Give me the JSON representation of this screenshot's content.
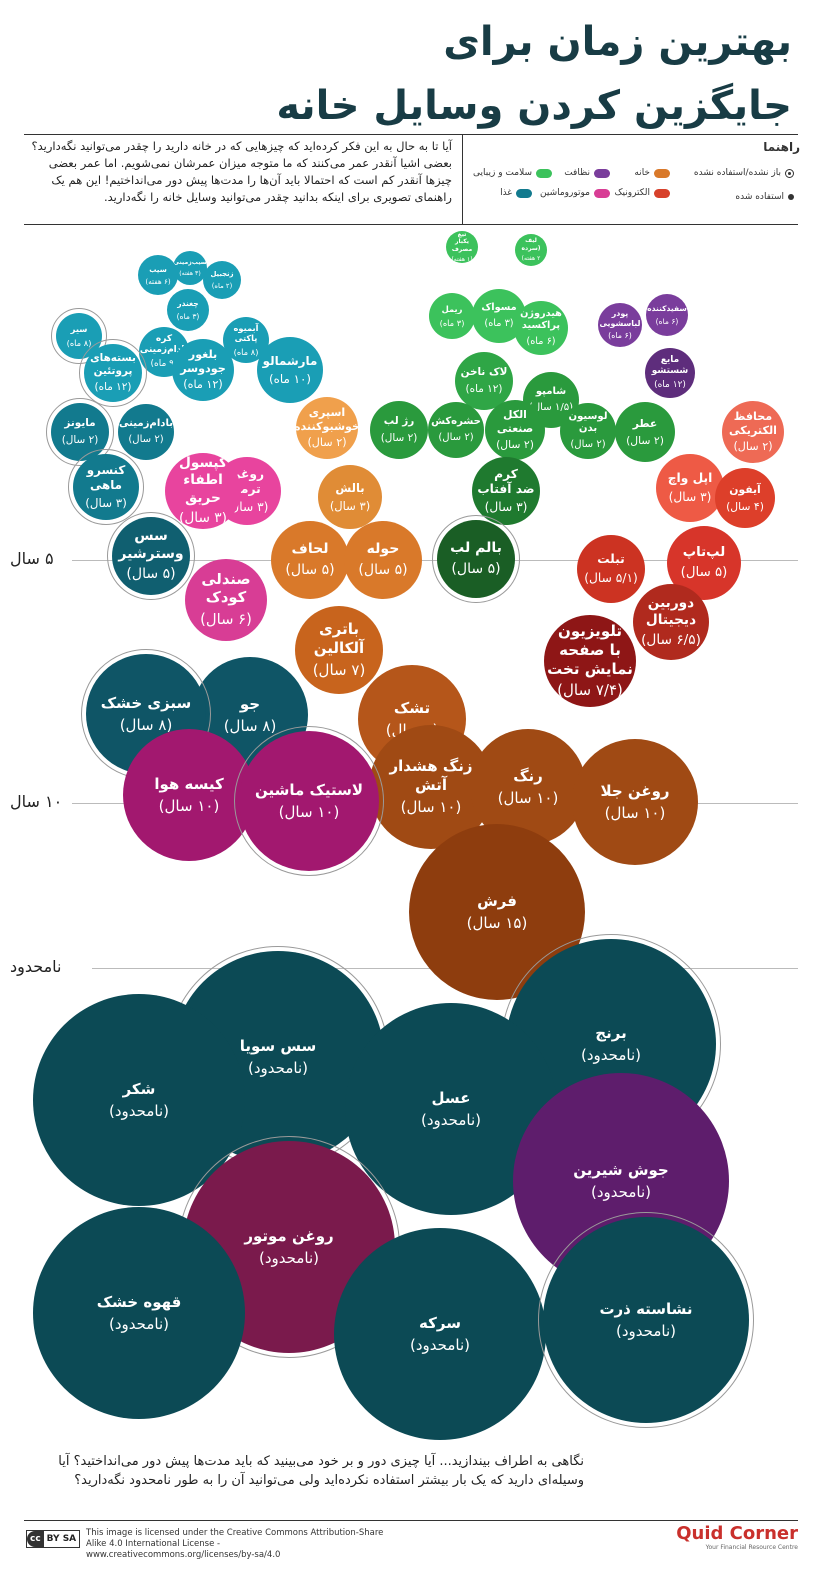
{
  "title": {
    "line1": "بهترین زمان برای",
    "line2": "جایگزین کردن وسایل خانه"
  },
  "intro": {
    "p1": "آیا تا به حال به این فکر کرده‌اید که چیزهایی که در خانه دارید را چقدر می‌توانید نگه‌دارید؟",
    "p2": "بعضی اشیا آنقدر عمر می‌کنند که ما متوجه میزان عمرشان نمی‌شویم. اما عمر بعضی چیزها آنقدر کم است که احتمالا باید آن‌ها را مدت‌ها پیش دور می‌انداختیم! این هم یک راهنمای تصویری برای اینکه بدانید چقدر می‌توانید وسایل خانه را نگه‌دارید."
  },
  "legend": {
    "title": "راهنما",
    "items": [
      {
        "label": "باز نشده/استفاده نشده",
        "kind": "ring"
      },
      {
        "label": "استفاده شده",
        "kind": "dot"
      },
      {
        "label": "خانه",
        "color": "#d9792a"
      },
      {
        "label": "نظافت",
        "color": "#7a3d9c"
      },
      {
        "label": "سلامت و زیبایی",
        "color": "#3cc25c"
      },
      {
        "label": "الکترونیک",
        "color": "#d7412b"
      },
      {
        "label": "موتوروماشین",
        "color": "#d83d95"
      },
      {
        "label": "غذا",
        "color": "#127a8e"
      }
    ]
  },
  "levels": [
    {
      "label": "۵ سال"
    },
    {
      "label": "۱۰ سال"
    },
    {
      "label": "نامحدود"
    }
  ],
  "chart_data": {
    "type": "bubble",
    "title": "بهترین زمان برای جایگزین کردن وسایل خانه",
    "items": [
      {
        "name": "تیغ\nیکبار مصرف",
        "duration": "(۱ هفته)",
        "category": "سلامت و زیبایی",
        "color": "#3cc25c",
        "unopened": false
      },
      {
        "name": "لیف\n(سرده",
        "duration": "۲ هفته)",
        "category": "سلامت و زیبایی",
        "color": "#3cc25c",
        "unopened": false
      },
      {
        "name": "سیب‌زمینی",
        "duration": "(۳ هفته)",
        "category": "غذا",
        "color": "#1a9eb5",
        "unopened": false
      },
      {
        "name": "سیب",
        "duration": "(۶ هفته)",
        "category": "غذا",
        "color": "#1a9eb5",
        "unopened": false
      },
      {
        "name": "زنجبیل",
        "duration": "(۲ ماه)",
        "category": "غذا",
        "color": "#1a9eb5",
        "unopened": false
      },
      {
        "name": "چغندر",
        "duration": "(۳ ماه)",
        "category": "غذا",
        "color": "#1a9eb5",
        "unopened": false
      },
      {
        "name": "سیر",
        "duration": "(۸ ماه)",
        "category": "غذا",
        "color": "#1a9eb5",
        "unopened": true
      },
      {
        "name": "کره\nبادام‌زمینی",
        "duration": "(۹ ماه)",
        "category": "غذا",
        "color": "#1a9eb5",
        "unopened": false
      },
      {
        "name": "آبمیوه\nپاکتی",
        "duration": "(۸ ماه)",
        "category": "غذا",
        "color": "#1a9eb5",
        "unopened": false
      },
      {
        "name": "بسته‌های\nپروتئین",
        "duration": "(۱۲ ماه)",
        "category": "غذا",
        "color": "#1a9eb5",
        "unopened": true
      },
      {
        "name": "بلغور\nجودوسر",
        "duration": "(۱۲ ماه)",
        "category": "غذا",
        "color": "#1a9eb5",
        "unopened": false
      },
      {
        "name": "مارشمالو",
        "duration": "(۱۰ ماه)",
        "category": "غذا",
        "color": "#1a9eb5",
        "unopened": false
      },
      {
        "name": "مایونز",
        "duration": "(۲ سال)",
        "category": "غذا",
        "color": "#127a8e",
        "unopened": true
      },
      {
        "name": "بادام‌زمینی",
        "duration": "(۲ سال)",
        "category": "غذا",
        "color": "#127a8e",
        "unopened": false
      },
      {
        "name": "کنسرو\nماهی",
        "duration": "(۳ سال)",
        "category": "غذا",
        "color": "#127a8e",
        "unopened": true
      },
      {
        "name": "سس\nوسترشیر",
        "duration": "(۵ سال)",
        "category": "غذا",
        "color": "#105f70",
        "unopened": true
      },
      {
        "name": "ریمل",
        "duration": "(۳ ماه)",
        "category": "سلامت و زیبایی",
        "color": "#3cc25c",
        "unopened": false
      },
      {
        "name": "مسواک",
        "duration": "(۳ ماه)",
        "category": "سلامت و زیبایی",
        "color": "#3cc25c",
        "unopened": false
      },
      {
        "name": "هیدروژن\nپراکسید",
        "duration": "(۶ ماه)",
        "category": "سلامت و زیبایی",
        "color": "#3cc25c",
        "unopened": false
      },
      {
        "name": "لاک ناخن",
        "duration": "(۱۲ ماه)",
        "category": "سلامت و زیبایی",
        "color": "#2fa646",
        "unopened": false
      },
      {
        "name": "شامپو",
        "duration": "(۱/۵ سال)",
        "category": "سلامت و زیبایی",
        "color": "#2a9a3d",
        "unopened": false
      },
      {
        "name": "رژ لب",
        "duration": "(۲ سال)",
        "category": "سلامت و زیبایی",
        "color": "#2a9a3d",
        "unopened": false
      },
      {
        "name": "حشره‌کش",
        "duration": "(۲ سال)",
        "category": "سلامت و زیبایی",
        "color": "#2a9a3d",
        "unopened": false
      },
      {
        "name": "الکل\nصنعتی",
        "duration": "(۲ سال)",
        "category": "سلامت و زیبایی",
        "color": "#2a9a3d",
        "unopened": false
      },
      {
        "name": "لوسیون\nبدن",
        "duration": "(۲ سال)",
        "category": "سلامت و زیبایی",
        "color": "#2a9a3d",
        "unopened": false
      },
      {
        "name": "عطر",
        "duration": "(۲ سال)",
        "category": "سلامت و زیبایی",
        "color": "#2a9a3d",
        "unopened": false
      },
      {
        "name": "کرم\nضد آفتاب",
        "duration": "(۳ سال)",
        "category": "سلامت و زیبایی",
        "color": "#1f7a2f",
        "unopened": false
      },
      {
        "name": "بالم لب",
        "duration": "(۵ سال)",
        "category": "سلامت و زیبایی",
        "color": "#1a5e25",
        "unopened": true
      },
      {
        "name": "پودر\nلباسشویی",
        "duration": "(۶ ماه)",
        "category": "نظافت",
        "color": "#7a3d9c",
        "unopened": false
      },
      {
        "name": "سفیدکننده",
        "duration": "(۶ ماه)",
        "category": "نظافت",
        "color": "#7a3d9c",
        "unopened": false
      },
      {
        "name": "مایع\nشستشو",
        "duration": "(۱۲ ماه)",
        "category": "نظافت",
        "color": "#5e2d7c",
        "unopened": false
      },
      {
        "name": "محافظ\nالکتریکی",
        "duration": "(۲ سال)",
        "category": "الکترونیک",
        "color": "#ee6a55",
        "unopened": false
      },
      {
        "name": "اپل واچ",
        "duration": "(۳ سال)",
        "category": "الکترونیک",
        "color": "#ee5a45",
        "unopened": false
      },
      {
        "name": "آیفون",
        "duration": "(۴ سال)",
        "category": "الکترونیک",
        "color": "#dd3f2a",
        "unopened": false
      },
      {
        "name": "لپ‌تاپ",
        "duration": "(۵ سال)",
        "category": "الکترونیک",
        "color": "#d7352a",
        "unopened": false
      },
      {
        "name": "تبلت",
        "duration": "(۵/۱ سال)",
        "category": "الکترونیک",
        "color": "#cc3322",
        "unopened": false
      },
      {
        "name": "دوربین\nدیجیتال",
        "duration": "(۶/۵ سال)",
        "category": "الکترونیک",
        "color": "#b02a1e",
        "unopened": false
      },
      {
        "name": "تلویزیون\nبا صفحه\nنمایش تخت",
        "duration": "(۷/۴ سال)",
        "category": "الکترونیک",
        "color": "#8e1616",
        "unopened": false
      },
      {
        "name": "اسپری\nخوشبوکننده",
        "duration": "(۲ سال)",
        "category": "خانه",
        "color": "#f0a04c",
        "unopened": false
      },
      {
        "name": "بالش",
        "duration": "(۳ سال)",
        "category": "خانه",
        "color": "#e08c36",
        "unopened": false
      },
      {
        "name": "لحاف",
        "duration": "(۵ سال)",
        "category": "خانه",
        "color": "#d9792a",
        "unopened": false
      },
      {
        "name": "حوله",
        "duration": "(۵ سال)",
        "category": "خانه",
        "color": "#d9792a",
        "unopened": false
      },
      {
        "name": "باتری آلکالین",
        "duration": "(۷ سال)",
        "category": "خانه",
        "color": "#c8641d",
        "unopened": false
      },
      {
        "name": "تشک",
        "duration": "(۸ سال)",
        "category": "خانه",
        "color": "#b5561a",
        "unopened": false
      },
      {
        "name": "زنگ هشدار\nآتش",
        "duration": "(۱۰ سال)",
        "category": "خانه",
        "color": "#a04a14",
        "unopened": false
      },
      {
        "name": "رنگ",
        "duration": "(۱۰ سال)",
        "category": "خانه",
        "color": "#a04a14",
        "unopened": false
      },
      {
        "name": "روغن جلا",
        "duration": "(۱۰ سال)",
        "category": "خانه",
        "color": "#a04a14",
        "unopened": false
      },
      {
        "name": "فرش",
        "duration": "(۱۵ سال)",
        "category": "خانه",
        "color": "#8e3d0e",
        "unopened": false
      },
      {
        "name": "روغن\nترمز",
        "duration": "(۳ سال)",
        "category": "موتوروماشین",
        "color": "#e8449e",
        "unopened": false
      },
      {
        "name": "کپسول\nاطفاء حریق",
        "duration": "(۳ سال)",
        "category": "موتوروماشین",
        "color": "#e8449e",
        "unopened": false
      },
      {
        "name": "صندلی\nکودک",
        "duration": "(۶ سال)",
        "category": "موتوروماشین",
        "color": "#d83d95",
        "unopened": false
      },
      {
        "name": "جو",
        "duration": "(۸ سال)",
        "category": "غذا",
        "color": "#0f5566",
        "unopened": false
      },
      {
        "name": "سبزی خشک",
        "duration": "(۸ سال)",
        "category": "غذا",
        "color": "#0f5566",
        "unopened": true
      },
      {
        "name": "کیسه هوا",
        "duration": "(۱۰ سال)",
        "category": "موتوروماشین",
        "color": "#a2186f",
        "unopened": false
      },
      {
        "name": "لاستیک ماشین",
        "duration": "(۱۰ سال)",
        "category": "موتوروماشین",
        "color": "#a2186f",
        "unopened": true
      },
      {
        "name": "برنج",
        "duration": "(نامحدود)",
        "category": "غذا",
        "color": "#0c4a55",
        "unopened": true
      },
      {
        "name": "سس سویا",
        "duration": "(نامحدود)",
        "category": "غذا",
        "color": "#0c4a55",
        "unopened": true
      },
      {
        "name": "شکر",
        "duration": "(نامحدود)",
        "category": "غذا",
        "color": "#0c4a55",
        "unopened": false
      },
      {
        "name": "عسل",
        "duration": "(نامحدود)",
        "category": "غذا",
        "color": "#0c4a55",
        "unopened": false
      },
      {
        "name": "جوش شیرین",
        "duration": "(نامحدود)",
        "category": "نظافت",
        "color": "#5e1d6c",
        "unopened": false
      },
      {
        "name": "روغن موتور",
        "duration": "(نامحدود)",
        "category": "موتوروماشین",
        "color": "#7a1a4c",
        "unopened": true
      },
      {
        "name": "قهوه خشک",
        "duration": "(نامحدود)",
        "category": "غذا",
        "color": "#0c4a55",
        "unopened": false
      },
      {
        "name": "سرکه",
        "duration": "(نامحدود)",
        "category": "غذا",
        "color": "#0c4a55",
        "unopened": false
      },
      {
        "name": "نشاسته ذرت",
        "duration": "(نامحدود)",
        "category": "غذا",
        "color": "#0c4a55",
        "unopened": true
      }
    ]
  },
  "outro": "نگاهی به اطراف بیندازید... آیا چیزی دور و بر خود می‌بینید که باید مدت‌ها پیش دور می‌انداختید؟ آیا وسیله‌ای دارید که یک بار بیشتر استفاده نکرده‌اید ولی می‌توانید آن را به طور نامحدود نگه‌دارید؟",
  "footer": {
    "cc_a": "cc",
    "cc_b": "BY SA",
    "license": "This image is licensed under the Creative Commons Attribution-Share Alike 4.0 International License - www.creativecommons.org/licenses/by-sa/4.0",
    "brand": "Quid Corner",
    "tagline": "Your Financial Resource Centre"
  }
}
